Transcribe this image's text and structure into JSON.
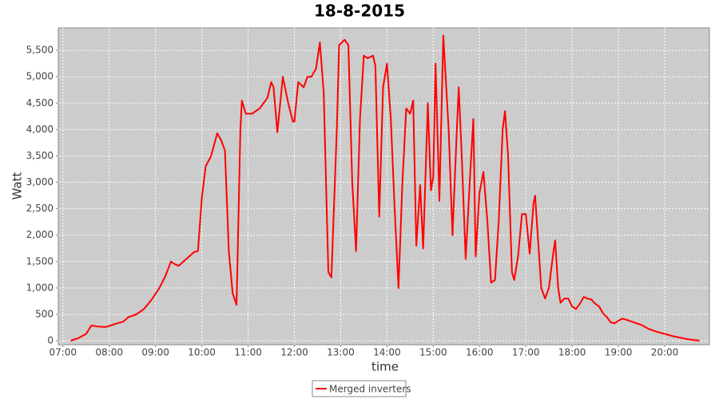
{
  "chart_data": {
    "type": "line",
    "title": "18-8-2015",
    "x_label": "time",
    "y_label": "Watt",
    "x": [
      "07:10",
      "07:20",
      "07:30",
      "07:37",
      "07:45",
      "07:55",
      "08:00",
      "08:10",
      "08:18",
      "08:25",
      "08:35",
      "08:45",
      "08:55",
      "09:05",
      "09:12",
      "09:20",
      "09:25",
      "09:30",
      "09:40",
      "09:50",
      "09:55",
      "10:00",
      "10:05",
      "10:12",
      "10:20",
      "10:25",
      "10:30",
      "10:35",
      "10:40",
      "10:45",
      "10:50",
      "10:52",
      "10:57",
      "11:05",
      "11:15",
      "11:25",
      "11:30",
      "11:33",
      "11:38",
      "11:45",
      "11:52",
      "11:58",
      "12:00",
      "12:05",
      "12:12",
      "12:17",
      "12:22",
      "12:28",
      "12:33",
      "12:38",
      "12:44",
      "12:48",
      "12:55",
      "12:58",
      "13:05",
      "13:10",
      "13:15",
      "13:20",
      "13:25",
      "13:30",
      "13:35",
      "13:42",
      "13:45",
      "13:50",
      "13:55",
      "14:00",
      "14:05",
      "14:10",
      "14:15",
      "14:20",
      "14:25",
      "14:30",
      "14:34",
      "14:38",
      "14:43",
      "14:47",
      "14:53",
      "14:57",
      "15:00",
      "15:03",
      "15:08",
      "15:13",
      "15:20",
      "15:25",
      "15:30",
      "15:33",
      "15:37",
      "15:42",
      "15:48",
      "15:52",
      "15:55",
      "16:00",
      "16:05",
      "16:10",
      "16:15",
      "16:20",
      "16:25",
      "16:30",
      "16:33",
      "16:37",
      "16:42",
      "16:45",
      "16:50",
      "16:55",
      "17:00",
      "17:05",
      "17:10",
      "17:12",
      "17:15",
      "17:20",
      "17:25",
      "17:30",
      "17:35",
      "17:38",
      "17:42",
      "17:45",
      "17:50",
      "17:55",
      "18:00",
      "18:05",
      "18:10",
      "18:15",
      "18:20",
      "18:25",
      "18:30",
      "18:35",
      "18:40",
      "18:45",
      "18:50",
      "18:55",
      "19:00",
      "19:05",
      "19:10",
      "19:20",
      "19:30",
      "19:40",
      "19:50",
      "20:00",
      "20:10",
      "20:20",
      "20:30",
      "20:40",
      "20:45"
    ],
    "series": [
      {
        "name": "Merged inverters",
        "color": "#ff0000",
        "values": [
          0,
          50,
          130,
          290,
          270,
          260,
          280,
          330,
          360,
          450,
          500,
          600,
          780,
          1000,
          1200,
          1500,
          1450,
          1420,
          1550,
          1680,
          1700,
          2700,
          3300,
          3500,
          3930,
          3800,
          3600,
          1700,
          900,
          680,
          4000,
          4550,
          4300,
          4300,
          4400,
          4600,
          4900,
          4800,
          3950,
          5000,
          4500,
          4150,
          4150,
          4900,
          4800,
          5000,
          5000,
          5150,
          5650,
          4700,
          1300,
          1200,
          4000,
          5600,
          5700,
          5600,
          3000,
          1700,
          4200,
          5400,
          5350,
          5400,
          5200,
          2350,
          4800,
          5250,
          4200,
          2500,
          1000,
          3000,
          4400,
          4300,
          4550,
          1800,
          2950,
          1750,
          4500,
          2850,
          3100,
          5250,
          2650,
          5780,
          4000,
          2000,
          3800,
          4800,
          3500,
          1550,
          3200,
          4200,
          1600,
          2800,
          3200,
          2300,
          1100,
          1150,
          2300,
          4000,
          4350,
          3500,
          1300,
          1150,
          1600,
          2400,
          2400,
          1650,
          2600,
          2750,
          2100,
          1000,
          800,
          1000,
          1600,
          1900,
          1000,
          720,
          800,
          800,
          650,
          600,
          700,
          830,
          800,
          780,
          700,
          650,
          520,
          450,
          350,
          330,
          380,
          420,
          400,
          350,
          300,
          220,
          170,
          130,
          90,
          60,
          30,
          10,
          5
        ]
      }
    ],
    "xlim": [
      "06:54",
      "20:58"
    ],
    "xticks": [
      "07:00",
      "08:00",
      "09:00",
      "10:00",
      "11:00",
      "12:00",
      "13:00",
      "14:00",
      "15:00",
      "16:00",
      "17:00",
      "18:00",
      "19:00",
      "20:00"
    ],
    "ylim": [
      -75,
      5925
    ],
    "yticks": [
      0,
      500,
      {
        "value": 1000,
        "label": "1,000"
      },
      {
        "value": 1500,
        "label": "1,500"
      },
      {
        "value": 2000,
        "label": "2,000"
      },
      {
        "value": 2500,
        "label": "2,500"
      },
      {
        "value": 3000,
        "label": "3,000"
      },
      {
        "value": 3500,
        "label": "3,500"
      },
      {
        "value": 4000,
        "label": "4,000"
      },
      {
        "value": 4500,
        "label": "4,500"
      },
      {
        "value": 5000,
        "label": "5,000"
      },
      {
        "value": 5500,
        "label": "5,500"
      }
    ],
    "grid": true,
    "legend": "bottom"
  }
}
